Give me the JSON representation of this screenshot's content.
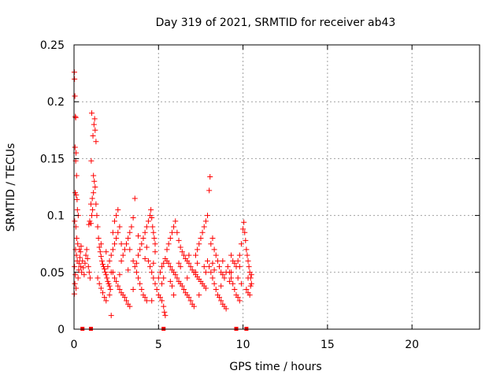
{
  "chart_data": {
    "type": "scatter",
    "title": "Day 319 of 2021, SRMTID for receiver ab43",
    "xlabel": "GPS time / hours",
    "ylabel": "SRMTID / TECUs",
    "xlim": [
      0,
      24
    ],
    "ylim": [
      0,
      0.25
    ],
    "x_ticks": [
      0,
      5,
      10,
      15,
      20
    ],
    "x_tick_labels": [
      "0",
      "5",
      "10",
      "15",
      "20"
    ],
    "y_ticks": [
      0,
      0.05,
      0.1,
      0.15,
      0.2,
      0.25
    ],
    "y_tick_labels": [
      "0",
      "0.05",
      "0.1",
      "0.15",
      "0.2",
      "0.25"
    ],
    "grid": true,
    "marker": "+",
    "color": "#ff0000",
    "series": [
      {
        "name": "SRMTID",
        "description_range": "0 to 10.5 hours",
        "points": [
          [
            0.02,
            0.226
          ],
          [
            0.03,
            0.22
          ],
          [
            0.05,
            0.205
          ],
          [
            0.08,
            0.187
          ],
          [
            0.1,
            0.186
          ],
          [
            0.06,
            0.16
          ],
          [
            0.12,
            0.155
          ],
          [
            0.1,
            0.148
          ],
          [
            0.15,
            0.135
          ],
          [
            0.07,
            0.12
          ],
          [
            0.13,
            0.118
          ],
          [
            0.18,
            0.114
          ],
          [
            0.2,
            0.105
          ],
          [
            0.25,
            0.1
          ],
          [
            0.04,
            0.095
          ],
          [
            0.11,
            0.09
          ],
          [
            0.16,
            0.08
          ],
          [
            0.22,
            0.075
          ],
          [
            0.09,
            0.07
          ],
          [
            0.14,
            0.065
          ],
          [
            0.19,
            0.06
          ],
          [
            0.03,
            0.055
          ],
          [
            0.08,
            0.048
          ],
          [
            0.05,
            0.04
          ],
          [
            0.02,
            0.031
          ],
          [
            0.12,
            0.036
          ],
          [
            0.24,
            0.045
          ],
          [
            0.28,
            0.052
          ],
          [
            0.3,
            0.058
          ],
          [
            0.35,
            0.063
          ],
          [
            0.4,
            0.055
          ],
          [
            0.45,
            0.05
          ],
          [
            0.32,
            0.07
          ],
          [
            0.38,
            0.068
          ],
          [
            0.42,
            0.073
          ],
          [
            0.5,
            0.06
          ],
          [
            0.55,
            0.054
          ],
          [
            0.6,
            0.048
          ],
          [
            0.65,
            0.058
          ],
          [
            0.7,
            0.065
          ],
          [
            0.75,
            0.07
          ],
          [
            0.8,
            0.062
          ],
          [
            0.85,
            0.055
          ],
          [
            0.9,
            0.05
          ],
          [
            0.95,
            0.045
          ],
          [
            0.88,
            0.092
          ],
          [
            0.93,
            0.095
          ],
          [
            1.0,
            0.093
          ],
          [
            1.05,
            0.1
          ],
          [
            1.1,
            0.105
          ],
          [
            1.0,
            0.11
          ],
          [
            1.08,
            0.115
          ],
          [
            1.15,
            0.12
          ],
          [
            1.2,
            0.13
          ],
          [
            1.02,
            0.148
          ],
          [
            1.12,
            0.17
          ],
          [
            1.18,
            0.18
          ],
          [
            1.22,
            0.185
          ],
          [
            1.25,
            0.175
          ],
          [
            1.3,
            0.165
          ],
          [
            1.05,
            0.19
          ],
          [
            1.15,
            0.135
          ],
          [
            1.25,
            0.125
          ],
          [
            1.3,
            0.11
          ],
          [
            1.35,
            0.1
          ],
          [
            1.4,
            0.09
          ],
          [
            1.45,
            0.08
          ],
          [
            1.5,
            0.072
          ],
          [
            1.55,
            0.068
          ],
          [
            1.6,
            0.064
          ],
          [
            1.65,
            0.06
          ],
          [
            1.7,
            0.057
          ],
          [
            1.75,
            0.055
          ],
          [
            1.8,
            0.053
          ],
          [
            1.85,
            0.05
          ],
          [
            1.9,
            0.048
          ],
          [
            1.95,
            0.045
          ],
          [
            2.0,
            0.042
          ],
          [
            2.05,
            0.04
          ],
          [
            2.1,
            0.038
          ],
          [
            2.15,
            0.035
          ],
          [
            2.2,
            0.012
          ],
          [
            1.4,
            0.045
          ],
          [
            1.5,
            0.04
          ],
          [
            1.6,
            0.036
          ],
          [
            1.7,
            0.032
          ],
          [
            1.8,
            0.028
          ],
          [
            1.9,
            0.025
          ],
          [
            2.0,
            0.055
          ],
          [
            2.1,
            0.06
          ],
          [
            2.2,
            0.065
          ],
          [
            2.3,
            0.07
          ],
          [
            2.4,
            0.075
          ],
          [
            2.5,
            0.08
          ],
          [
            2.6,
            0.085
          ],
          [
            2.7,
            0.09
          ],
          [
            2.5,
            0.1
          ],
          [
            2.6,
            0.105
          ],
          [
            2.4,
            0.095
          ],
          [
            2.3,
            0.05
          ],
          [
            2.4,
            0.045
          ],
          [
            2.5,
            0.042
          ],
          [
            2.6,
            0.038
          ],
          [
            2.7,
            0.035
          ],
          [
            2.8,
            0.032
          ],
          [
            2.9,
            0.03
          ],
          [
            3.0,
            0.028
          ],
          [
            3.1,
            0.025
          ],
          [
            3.2,
            0.022
          ],
          [
            3.3,
            0.02
          ],
          [
            2.8,
            0.06
          ],
          [
            2.9,
            0.065
          ],
          [
            3.0,
            0.07
          ],
          [
            3.1,
            0.075
          ],
          [
            3.2,
            0.08
          ],
          [
            3.3,
            0.085
          ],
          [
            3.4,
            0.09
          ],
          [
            3.5,
            0.098
          ],
          [
            3.6,
            0.115
          ],
          [
            3.5,
            0.06
          ],
          [
            3.6,
            0.055
          ],
          [
            3.7,
            0.05
          ],
          [
            3.8,
            0.045
          ],
          [
            3.9,
            0.04
          ],
          [
            4.0,
            0.035
          ],
          [
            4.1,
            0.03
          ],
          [
            4.2,
            0.028
          ],
          [
            4.3,
            0.025
          ],
          [
            3.8,
            0.065
          ],
          [
            3.9,
            0.07
          ],
          [
            4.0,
            0.075
          ],
          [
            4.1,
            0.08
          ],
          [
            4.2,
            0.085
          ],
          [
            4.3,
            0.09
          ],
          [
            4.4,
            0.095
          ],
          [
            4.5,
            0.1
          ],
          [
            4.55,
            0.105
          ],
          [
            4.6,
            0.098
          ],
          [
            4.65,
            0.09
          ],
          [
            4.7,
            0.085
          ],
          [
            4.75,
            0.08
          ],
          [
            4.8,
            0.075
          ],
          [
            4.4,
            0.06
          ],
          [
            4.5,
            0.055
          ],
          [
            4.6,
            0.05
          ],
          [
            4.7,
            0.045
          ],
          [
            4.8,
            0.04
          ],
          [
            4.9,
            0.035
          ],
          [
            5.0,
            0.03
          ],
          [
            5.1,
            0.028
          ],
          [
            5.2,
            0.025
          ],
          [
            5.3,
            0.02
          ],
          [
            5.35,
            0.015
          ],
          [
            5.4,
            0.012
          ],
          [
            5.0,
            0.045
          ],
          [
            5.1,
            0.05
          ],
          [
            5.2,
            0.055
          ],
          [
            5.3,
            0.058
          ],
          [
            5.4,
            0.062
          ],
          [
            5.5,
            0.06
          ],
          [
            5.6,
            0.058
          ],
          [
            5.7,
            0.055
          ],
          [
            5.8,
            0.052
          ],
          [
            5.9,
            0.05
          ],
          [
            6.0,
            0.048
          ],
          [
            6.1,
            0.045
          ],
          [
            6.2,
            0.042
          ],
          [
            6.3,
            0.04
          ],
          [
            6.4,
            0.038
          ],
          [
            6.5,
            0.035
          ],
          [
            6.6,
            0.032
          ],
          [
            6.7,
            0.03
          ],
          [
            6.8,
            0.028
          ],
          [
            6.9,
            0.025
          ],
          [
            7.0,
            0.022
          ],
          [
            7.1,
            0.02
          ],
          [
            5.5,
            0.07
          ],
          [
            5.6,
            0.075
          ],
          [
            5.7,
            0.08
          ],
          [
            5.8,
            0.085
          ],
          [
            5.9,
            0.09
          ],
          [
            6.0,
            0.095
          ],
          [
            6.1,
            0.085
          ],
          [
            6.2,
            0.078
          ],
          [
            6.3,
            0.072
          ],
          [
            6.4,
            0.068
          ],
          [
            6.5,
            0.065
          ],
          [
            6.6,
            0.062
          ],
          [
            6.7,
            0.06
          ],
          [
            6.8,
            0.058
          ],
          [
            6.9,
            0.055
          ],
          [
            7.0,
            0.052
          ],
          [
            7.1,
            0.05
          ],
          [
            7.2,
            0.048
          ],
          [
            7.3,
            0.046
          ],
          [
            7.4,
            0.044
          ],
          [
            7.5,
            0.042
          ],
          [
            7.6,
            0.04
          ],
          [
            7.7,
            0.038
          ],
          [
            7.8,
            0.036
          ],
          [
            7.2,
            0.065
          ],
          [
            7.3,
            0.07
          ],
          [
            7.4,
            0.075
          ],
          [
            7.5,
            0.08
          ],
          [
            7.6,
            0.085
          ],
          [
            7.7,
            0.09
          ],
          [
            7.8,
            0.095
          ],
          [
            7.9,
            0.1
          ],
          [
            8.0,
            0.122
          ],
          [
            8.05,
            0.134
          ],
          [
            7.9,
            0.06
          ],
          [
            8.0,
            0.055
          ],
          [
            8.1,
            0.05
          ],
          [
            8.2,
            0.045
          ],
          [
            8.3,
            0.04
          ],
          [
            8.4,
            0.035
          ],
          [
            8.5,
            0.03
          ],
          [
            8.6,
            0.028
          ],
          [
            8.7,
            0.025
          ],
          [
            8.8,
            0.022
          ],
          [
            8.9,
            0.02
          ],
          [
            9.0,
            0.018
          ],
          [
            8.1,
            0.075
          ],
          [
            8.2,
            0.08
          ],
          [
            8.3,
            0.07
          ],
          [
            8.4,
            0.065
          ],
          [
            8.5,
            0.06
          ],
          [
            8.6,
            0.055
          ],
          [
            8.7,
            0.05
          ],
          [
            8.8,
            0.048
          ],
          [
            8.9,
            0.045
          ],
          [
            9.0,
            0.05
          ],
          [
            9.1,
            0.055
          ],
          [
            9.2,
            0.05
          ],
          [
            9.3,
            0.045
          ],
          [
            9.4,
            0.04
          ],
          [
            9.5,
            0.035
          ],
          [
            9.6,
            0.03
          ],
          [
            9.7,
            0.028
          ],
          [
            9.8,
            0.025
          ],
          [
            9.3,
            0.065
          ],
          [
            9.4,
            0.06
          ],
          [
            9.5,
            0.058
          ],
          [
            9.6,
            0.055
          ],
          [
            9.7,
            0.06
          ],
          [
            9.8,
            0.065
          ],
          [
            9.9,
            0.075
          ],
          [
            10.0,
            0.088
          ],
          [
            10.05,
            0.094
          ],
          [
            10.1,
            0.085
          ],
          [
            10.15,
            0.078
          ],
          [
            10.2,
            0.07
          ],
          [
            10.25,
            0.065
          ],
          [
            10.3,
            0.06
          ],
          [
            10.35,
            0.055
          ],
          [
            10.4,
            0.05
          ],
          [
            10.45,
            0.045
          ],
          [
            10.5,
            0.04
          ],
          [
            10.2,
            0.035
          ],
          [
            10.3,
            0.032
          ],
          [
            10.4,
            0.03
          ],
          [
            10.45,
            0.038
          ],
          [
            10.5,
            0.048
          ],
          [
            9.9,
            0.04
          ],
          [
            2.2,
            0.05
          ],
          [
            2.7,
            0.048
          ],
          [
            3.2,
            0.052
          ],
          [
            3.7,
            0.058
          ],
          [
            4.2,
            0.062
          ],
          [
            4.7,
            0.058
          ],
          [
            5.2,
            0.04
          ],
          [
            5.7,
            0.042
          ],
          [
            6.2,
            0.058
          ],
          [
            6.7,
            0.045
          ],
          [
            7.2,
            0.05
          ],
          [
            7.7,
            0.055
          ],
          [
            8.2,
            0.058
          ],
          [
            8.7,
            0.038
          ],
          [
            9.2,
            0.042
          ],
          [
            9.7,
            0.045
          ],
          [
            1.6,
            0.075
          ],
          [
            1.9,
            0.068
          ],
          [
            2.3,
            0.085
          ],
          [
            2.8,
            0.075
          ],
          [
            3.3,
            0.07
          ],
          [
            3.8,
            0.082
          ],
          [
            4.3,
            0.072
          ],
          [
            4.8,
            0.068
          ],
          [
            5.3,
            0.045
          ],
          [
            5.8,
            0.038
          ],
          [
            6.3,
            0.055
          ],
          [
            6.8,
            0.065
          ],
          [
            7.3,
            0.058
          ],
          [
            7.8,
            0.05
          ],
          [
            8.3,
            0.052
          ],
          [
            8.8,
            0.06
          ],
          [
            9.3,
            0.05
          ],
          [
            9.8,
            0.055
          ],
          [
            10.3,
            0.045
          ],
          [
            2.1,
            0.03
          ],
          [
            3.5,
            0.035
          ],
          [
            4.6,
            0.025
          ],
          [
            5.9,
            0.03
          ],
          [
            7.4,
            0.03
          ]
        ]
      }
    ],
    "axis_markers": {
      "description": "short thick red marks at the baseline",
      "x": [
        0.5,
        1.0,
        5.3,
        9.6,
        10.2
      ]
    }
  }
}
